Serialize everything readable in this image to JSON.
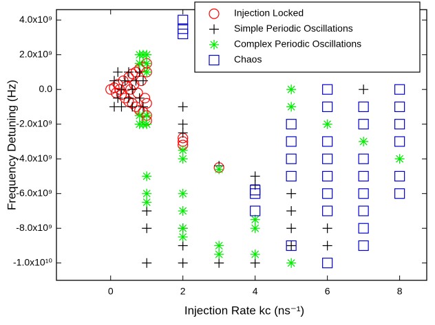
{
  "chart_data": {
    "type": "scatter",
    "x_label": "Injection Rate kc (ns⁻¹)",
    "y_label": "Frequency Detuning (Hz)",
    "xlim": [
      -1.5,
      8.75
    ],
    "ylim": [
      -11000000000,
      4600000000
    ],
    "xticks": [
      0,
      2,
      4,
      6,
      8
    ],
    "yticks": [
      {
        "value": 4000000000,
        "label": "4.0x10⁹"
      },
      {
        "value": 2000000000,
        "label": "2.0x10⁹"
      },
      {
        "value": 0,
        "label": "0.0"
      },
      {
        "value": -2000000000,
        "label": "-2.0x10⁹"
      },
      {
        "value": -4000000000,
        "label": "-4.0x10⁹"
      },
      {
        "value": -6000000000,
        "label": "-6.0x10⁹"
      },
      {
        "value": -8000000000,
        "label": "-8.0x10⁹"
      },
      {
        "value": -10000000000,
        "label": "-1.0x10¹⁰"
      }
    ],
    "legend": "upper right",
    "series": [
      {
        "name": "Injection Locked",
        "color": "#ff0000",
        "marker": "circle",
        "x": [
          0,
          0.1,
          0.15,
          0.2,
          0.25,
          0.3,
          0.35,
          0.4,
          0.45,
          0.5,
          0.5,
          0.55,
          0.6,
          0.6,
          0.65,
          0.7,
          0.7,
          0.75,
          0.8,
          0.8,
          0.85,
          0.9,
          0.9,
          0.95,
          1,
          1,
          1,
          1,
          1,
          2,
          2,
          2,
          3
        ],
        "values": [
          0,
          100000000,
          -200000000,
          300000000,
          0,
          -300000000,
          500000000,
          -500000000,
          200000000,
          700000000,
          -700000000,
          0,
          900000000,
          -800000000,
          300000000,
          1000000000,
          -1000000000,
          -200000000,
          1200000000,
          -1200000000,
          500000000,
          1300000000,
          -1300000000,
          -500000000,
          1500000000,
          -1500000000,
          -800000000,
          1000000000,
          -1800000000,
          -2800000000,
          -3000000000,
          -3200000000,
          -4500000000
        ]
      },
      {
        "name": "Simple Periodic Oscillations",
        "color": "#000000",
        "marker": "plus",
        "x": [
          0.1,
          0.1,
          0.2,
          0.2,
          0.3,
          0.3,
          0.4,
          0.5,
          0.5,
          0.6,
          0.6,
          0.7,
          0.8,
          0.8,
          0.9,
          0.9,
          1,
          1,
          1,
          2,
          2,
          2,
          2,
          2,
          2,
          3,
          3,
          4,
          4,
          4,
          5,
          5,
          5,
          5,
          6,
          6,
          7
        ],
        "values": [
          -1000000000,
          500000000,
          1000000000,
          -500000000,
          0,
          -1000000000,
          500000000,
          1000000000,
          -500000000,
          0,
          -1000000000,
          500000000,
          1000000000,
          -500000000,
          -1000000000,
          500000000,
          -7000000000,
          -8000000000,
          -10000000000,
          -1000000000,
          -2000000000,
          -2500000000,
          -8000000000,
          -9000000000,
          -10000000000,
          -4400000000,
          -10000000000,
          -5000000000,
          -5500000000,
          -10000000000,
          -6000000000,
          -7000000000,
          -8000000000,
          -9000000000,
          -8000000000,
          -9000000000,
          0
        ]
      },
      {
        "name": "Complex Periodic Oscillations",
        "color": "#00ee00",
        "marker": "asterisk",
        "x": [
          0.8,
          0.8,
          0.8,
          0.8,
          0.9,
          0.9,
          1,
          1,
          1,
          1,
          1,
          1,
          1,
          1,
          2,
          2,
          2,
          2,
          2,
          2,
          3,
          3,
          3,
          4,
          4,
          4,
          5,
          5,
          5,
          6,
          7,
          8
        ],
        "values": [
          2000000000,
          1500000000,
          -2000000000,
          -1500000000,
          2000000000,
          -2000000000,
          2000000000,
          1500000000,
          1000000000,
          -1500000000,
          -2000000000,
          -5000000000,
          -6000000000,
          -6500000000,
          -3500000000,
          -4000000000,
          -6000000000,
          -7000000000,
          -8000000000,
          -8500000000,
          -4600000000,
          -9000000000,
          -9500000000,
          -7500000000,
          -8000000000,
          -9500000000,
          0,
          -1000000000,
          -10000000000,
          -2000000000,
          -3000000000,
          -4000000000
        ]
      },
      {
        "name": "Chaos",
        "color": "#0000cc",
        "marker": "square",
        "x": [
          2,
          2,
          2,
          4,
          4,
          4,
          5,
          5,
          5,
          5,
          5,
          6,
          6,
          6,
          6,
          6,
          6,
          6,
          6,
          7,
          7,
          7,
          7,
          7,
          7,
          7,
          7,
          8,
          8,
          8,
          8,
          8,
          8
        ],
        "values": [
          4000000000,
          3500000000,
          3200000000,
          -6000000000,
          -5800000000,
          -7000000000,
          -2000000000,
          -3000000000,
          -4000000000,
          -5000000000,
          -9000000000,
          0,
          -1000000000,
          -3000000000,
          -4000000000,
          -5000000000,
          -6000000000,
          -7000000000,
          -10000000000,
          -1000000000,
          -2000000000,
          -4000000000,
          -5000000000,
          -6000000000,
          -7000000000,
          -8000000000,
          -9000000000,
          0,
          -1000000000,
          -2000000000,
          -3000000000,
          -5000000000,
          -6000000000
        ]
      }
    ]
  }
}
